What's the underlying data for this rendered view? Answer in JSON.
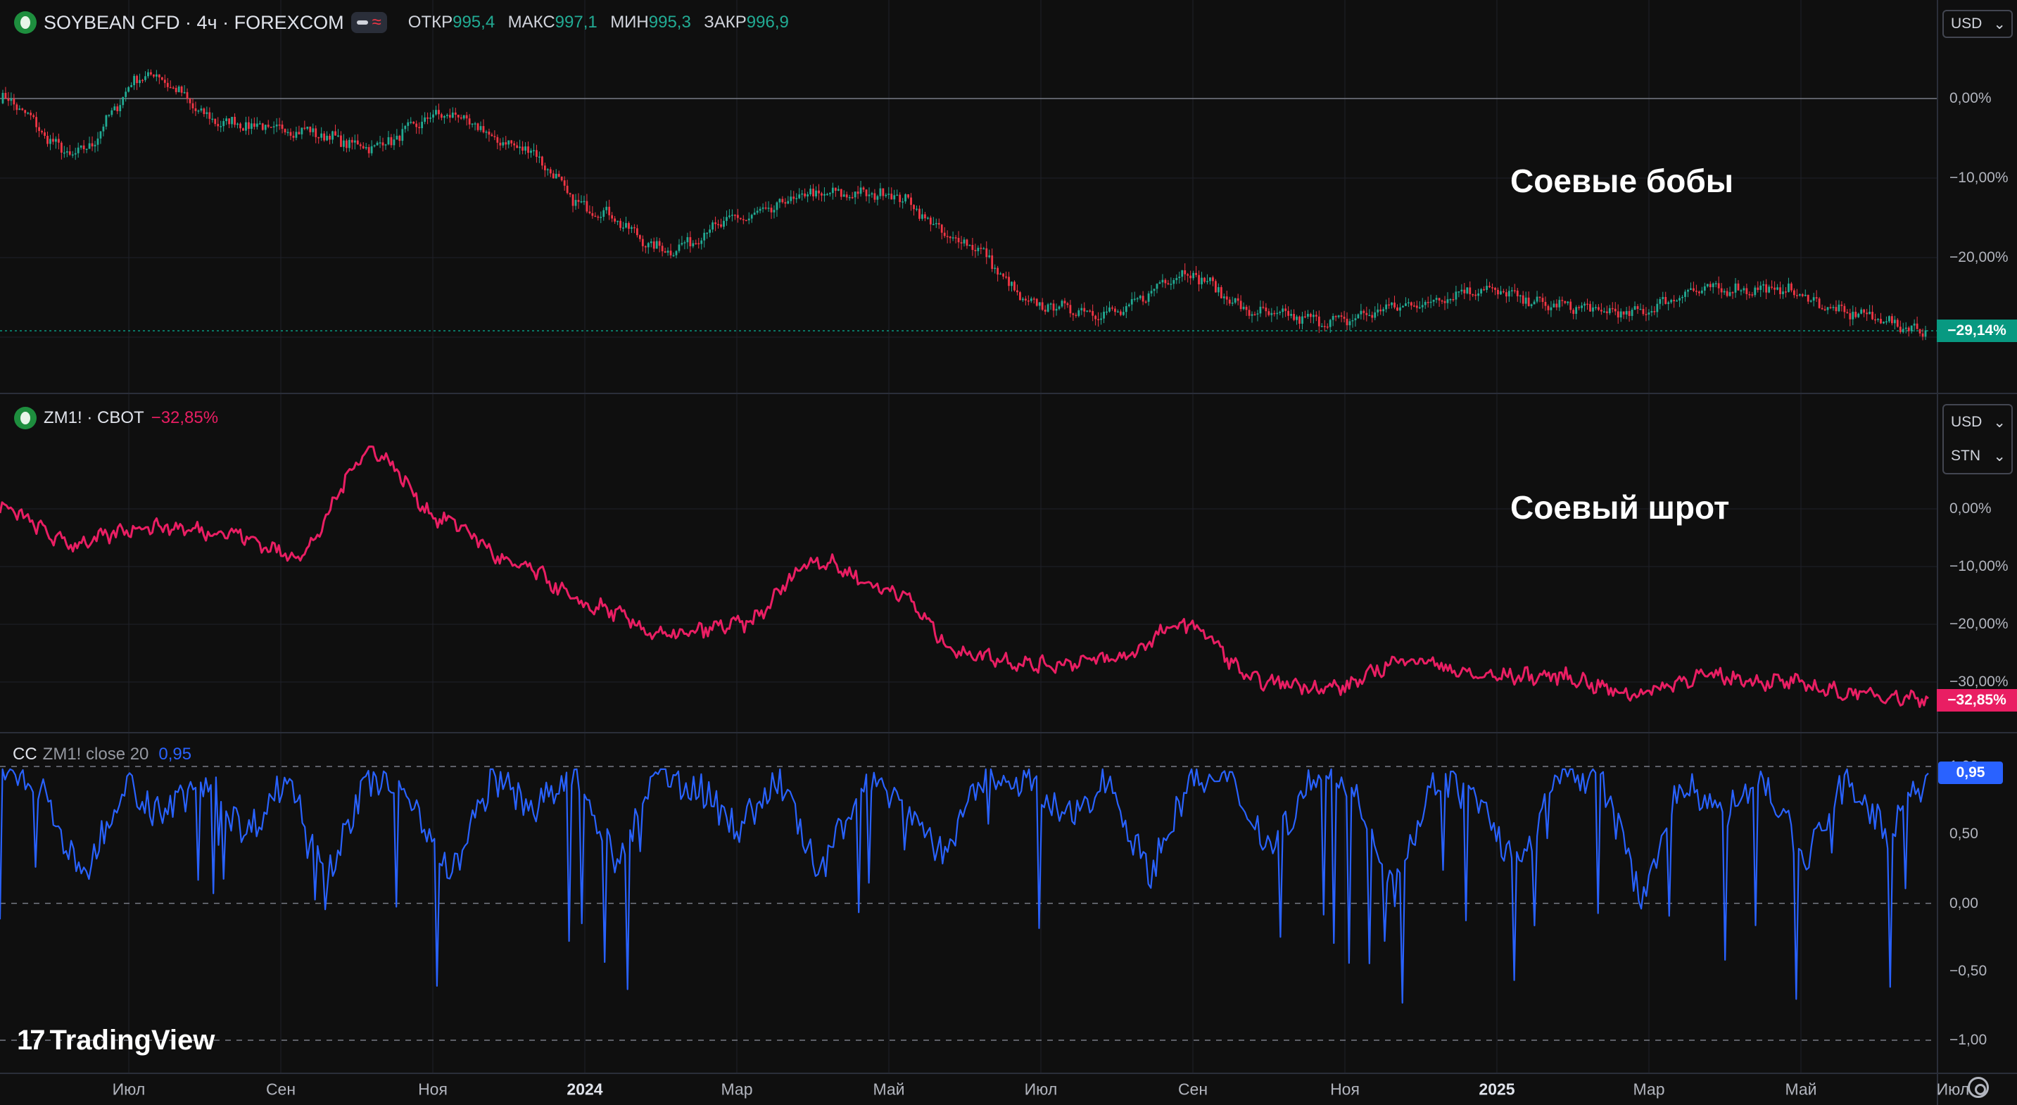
{
  "pane1": {
    "symbol": "SOYBEAN CFD · 4ч · FOREXCOM",
    "open_label": "ОТКР",
    "open_value": "995,4",
    "high_label": "МАКС",
    "high_value": "997,1",
    "low_label": "МИН",
    "low_value": "995,3",
    "close_label": "ЗАКР",
    "close_value": "996,9",
    "annotation": "Соевые бобы",
    "currency": "USD",
    "ticks": [
      "0,00%",
      "−10,00%",
      "−20,00%"
    ],
    "last_badge": "−29,14%",
    "last_badge_color": "#089981"
  },
  "pane2": {
    "symbol": "ZM1! · CBOT",
    "change": "−32,85%",
    "annotation": "Соевый шрот",
    "currency": "USD",
    "currency2": "STN",
    "ticks": [
      "0,00%",
      "−10,00%",
      "−20,00%",
      "−30,00%"
    ],
    "last_badge": "−32,85%",
    "last_badge_color": "#e91e63"
  },
  "pane3": {
    "label_cc": "CC",
    "label_params": "ZM1! close 20",
    "value": "0,95",
    "ticks": [
      "1,00",
      "0,50",
      "0,00",
      "−0,50",
      "−1,00"
    ],
    "last_badge": "0,95",
    "last_badge_color": "#2962ff"
  },
  "time_axis": [
    {
      "label": "Июл",
      "bold": false
    },
    {
      "label": "Сен",
      "bold": false
    },
    {
      "label": "Ноя",
      "bold": false
    },
    {
      "label": "2024",
      "bold": true
    },
    {
      "label": "Мар",
      "bold": false
    },
    {
      "label": "Май",
      "bold": false
    },
    {
      "label": "Июл",
      "bold": false
    },
    {
      "label": "Сен",
      "bold": false
    },
    {
      "label": "Ноя",
      "bold": false
    },
    {
      "label": "2025",
      "bold": true
    },
    {
      "label": "Мар",
      "bold": false
    },
    {
      "label": "Май",
      "bold": false
    },
    {
      "label": "Июл",
      "bold": false
    }
  ],
  "branding": "TradingView",
  "branding_mark": "17",
  "colors": {
    "up": "#22ab94",
    "down": "#f23645",
    "meal": "#e91e63",
    "cc": "#2962ff",
    "background": "#0f0f0f",
    "grid": "#1f2128"
  },
  "chart_data": [
    {
      "type": "line",
      "title": "SOYBEAN CFD · 4ч · FOREXCOM",
      "style": "candlestick",
      "y_unit": "%",
      "ylim": [
        -33,
        12
      ],
      "x": [
        "2023-06",
        "2023-07",
        "2023-08",
        "2023-09",
        "2023-10",
        "2023-11",
        "2023-12",
        "2024-01",
        "2024-02",
        "2024-03",
        "2024-04",
        "2024-05",
        "2024-06",
        "2024-07",
        "2024-08",
        "2024-09",
        "2024-10",
        "2024-11",
        "2024-12",
        "2025-01",
        "2025-02",
        "2025-03",
        "2025-04",
        "2025-05",
        "2025-06",
        "2025-07",
        "2025-08"
      ],
      "series": [
        {
          "name": "SOYBEAN CFD",
          "values": [
            0,
            -7,
            3,
            -3,
            -4,
            -6,
            -2,
            -6,
            -14,
            -19,
            -15,
            -12,
            -12,
            -18,
            -26,
            -27,
            -22,
            -27,
            -28,
            -26,
            -24,
            -26,
            -27,
            -24,
            -24,
            -27,
            -29.14
          ]
        }
      ]
    },
    {
      "type": "line",
      "title": "ZM1! · CBOT",
      "y_unit": "%",
      "ylim": [
        -36,
        12
      ],
      "x": [
        "2023-06",
        "2023-07",
        "2023-08",
        "2023-09",
        "2023-10",
        "2023-11",
        "2023-12",
        "2024-01",
        "2024-02",
        "2024-03",
        "2024-04",
        "2024-05",
        "2024-06",
        "2024-07",
        "2024-08",
        "2024-09",
        "2024-10",
        "2024-11",
        "2024-12",
        "2025-01",
        "2025-02",
        "2025-03",
        "2025-04",
        "2025-05",
        "2025-06",
        "2025-07",
        "2025-08"
      ],
      "series": [
        {
          "name": "ZM1!",
          "values": [
            0,
            -6,
            -3,
            -4,
            -8,
            10,
            -2,
            -10,
            -17,
            -22,
            -20,
            -9,
            -14,
            -25,
            -27,
            -26,
            -20,
            -30,
            -31,
            -26,
            -29,
            -29,
            -32,
            -29,
            -30,
            -32,
            -32.85
          ]
        }
      ]
    },
    {
      "type": "line",
      "title": "CC ZM1! close 20",
      "ylim": [
        -1,
        1
      ],
      "series": [
        {
          "name": "CC ZM1! close 20",
          "values": [
            0.95,
            0.82,
            -0.6,
            0.9,
            0.4,
            0.93,
            0.1,
            0.95,
            -0.4,
            0.92,
            0.7,
            -0.5,
            0.94,
            0.5,
            0.9,
            -0.3,
            0.95,
            0.8,
            0.2,
            0.93,
            -0.55,
            0.94,
            0.6,
            -0.2,
            0.95,
            0.9,
            0.3,
            0.95,
            -0.5,
            0.9,
            0.85,
            -0.1,
            0.95,
            0.7,
            -0.6,
            0.94,
            0.6,
            -0.4,
            0.92,
            0.95,
            -0.8,
            0.9,
            0.4,
            0.95,
            -0.3,
            0.93,
            0.1,
            0.95
          ]
        }
      ]
    }
  ]
}
